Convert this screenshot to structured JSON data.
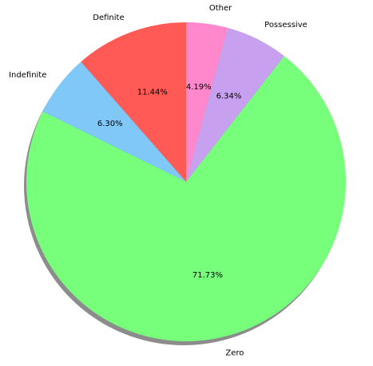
{
  "chart_data": {
    "type": "pie",
    "title": "",
    "start_angle_deg": 90,
    "direction": "counterclockwise",
    "shadow": true,
    "slices": [
      {
        "label": "Definite",
        "value": 11.44,
        "pct_text": "11.44%",
        "color": "#ff5a55"
      },
      {
        "label": "Indefinite",
        "value": 6.3,
        "pct_text": "6.30%",
        "color": "#7fc8f8"
      },
      {
        "label": "Zero",
        "value": 71.73,
        "pct_text": "71.73%",
        "color": "#77ff7c"
      },
      {
        "label": "Possessive",
        "value": 6.34,
        "pct_text": "6.34%",
        "color": "#c8a0f0"
      },
      {
        "label": "Other",
        "value": 4.19,
        "pct_text": "4.19%",
        "color": "#ff88cc"
      }
    ]
  }
}
